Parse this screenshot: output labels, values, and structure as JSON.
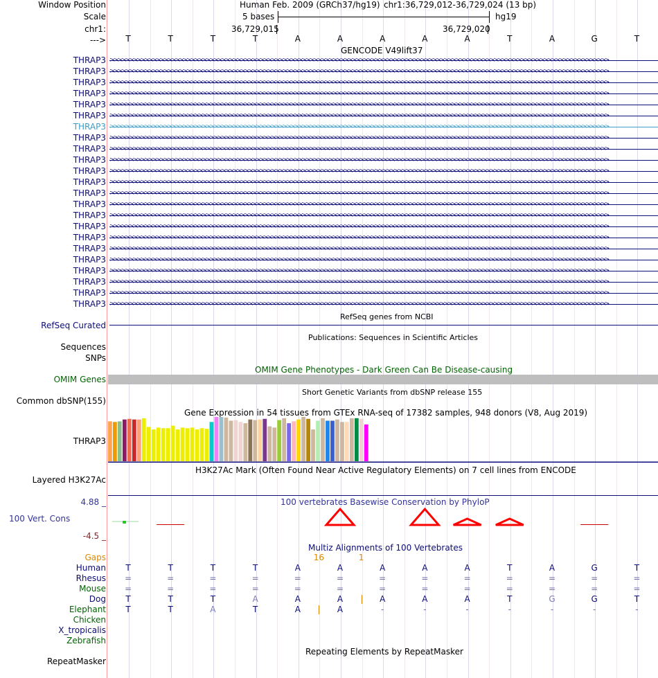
{
  "header": {
    "window_position_label": "Window Position",
    "scale_label": "Scale",
    "chrom_label": "chr1:",
    "strand_label": "--->",
    "assembly": "Human Feb. 2009 (GRCh37/hg19)",
    "position": "chr1:36,729,012-36,729,024 (13 bp)",
    "scale_bases": "5 bases",
    "db": "hg19",
    "coord_left": "36,729,015",
    "coord_right": "36,729,020"
  },
  "bases": [
    "T",
    "T",
    "T",
    "T",
    "A",
    "A",
    "A",
    "A",
    "A",
    "T",
    "A",
    "G",
    "T"
  ],
  "gencode": {
    "title": "GENCODE V49lift37",
    "transcripts": [
      "THRAP3",
      "THRAP3",
      "THRAP3",
      "THRAP3",
      "THRAP3",
      "THRAP3",
      "THRAP3",
      "THRAP3",
      "THRAP3",
      "THRAP3",
      "THRAP3",
      "THRAP3",
      "THRAP3",
      "THRAP3",
      "THRAP3",
      "THRAP3",
      "THRAP3",
      "THRAP3",
      "THRAP3",
      "THRAP3",
      "THRAP3",
      "THRAP3",
      "THRAP3"
    ],
    "highlight_index": 6,
    "color": "#0c0c78",
    "highlight_color": "#3c9ec8"
  },
  "refseq": {
    "title": "RefSeq genes from NCBI",
    "label": "RefSeq Curated",
    "color": "#0c0c78"
  },
  "publications": {
    "title": "Publications: Sequences in Scientific Articles",
    "label_line1": "Sequences",
    "label_line2": "SNPs"
  },
  "omim": {
    "title": "OMIM Gene Phenotypes - Dark Green Can Be Disease-causing",
    "label": "OMIM Genes",
    "color": "#006400",
    "bar_color": "#bebebe"
  },
  "dbsnp": {
    "title": "Short Genetic Variants from dbSNP release 155",
    "label": "Common dbSNP(155)"
  },
  "gtex": {
    "title": "Gene Expression in 54 tissues from GTEx RNA-seq of 17382 samples, 948 donors (V8, Aug 2019)",
    "label": "THRAP3",
    "values": [
      0.64,
      0.63,
      0.64,
      0.67,
      0.68,
      0.67,
      0.67,
      0.69,
      0.55,
      0.51,
      0.54,
      0.53,
      0.53,
      0.57,
      0.51,
      0.54,
      0.53,
      0.54,
      0.51,
      0.53,
      0.52,
      0.63,
      0.74,
      0.75,
      0.7,
      0.65,
      0.66,
      0.63,
      0.61,
      0.67,
      0.66,
      0.67,
      0.68,
      0.56,
      0.54,
      0.66,
      0.69,
      0.61,
      0.64,
      0.67,
      0.72,
      0.68,
      0.51,
      0.65,
      0.69,
      0.65,
      0.65,
      0.67,
      0.63,
      0.63,
      0.69,
      0.69,
      0.68,
      0.59
    ],
    "colors": [
      "#ffa54f",
      "#ee9a00",
      "#8fbc8f",
      "#8b1c62",
      "#ee6a50",
      "#cd2626",
      "#ffa07a",
      "#eeee00",
      "#eeee00",
      "#eeee00",
      "#eeee00",
      "#eeee00",
      "#eeee00",
      "#eeee00",
      "#eeee00",
      "#eeee00",
      "#eeee00",
      "#eeee00",
      "#eeee00",
      "#eeee00",
      "#eeee00",
      "#00cdcd",
      "#ee82ee",
      "#9ac0cd",
      "#cdb79e",
      "#cdb79e",
      "#eed5d2",
      "#eed5d2",
      "#cdb79e",
      "#8b7355",
      "#cdb79e",
      "#ffd39b",
      "#7a378b",
      "#cdb79e",
      "#cdb79e",
      "#9acd32",
      "#cdb79e",
      "#7a67ee",
      "#ffb6c1",
      "#ffd700",
      "#cdb79e",
      "#b8860b",
      "#cdb79e",
      "#b4eeb4",
      "#cdb79e",
      "#1c86ee",
      "#3a5fcd",
      "#cdb79e",
      "#cdb79e",
      "#ffdab9",
      "#cdb79e",
      "#008b45",
      "#eed5d2",
      "#ff00ff"
    ]
  },
  "h3k27ac": {
    "title": "H3K27Ac Mark (Often Found Near Active Regulatory Elements) on 7 cell lines from ENCODE",
    "label": "Layered H3K27Ac"
  },
  "phylop": {
    "title": "100 vertebrates Basewise Conservation by PhyloP",
    "label": "100 Vert. Cons",
    "max_label": "4.88 _",
    "min_label": "-4.5 _",
    "max": 4.88,
    "min": -4.5,
    "values": [
      0.2,
      -0.05,
      0,
      0,
      0,
      2.3,
      0,
      2.3,
      0.9,
      0.9,
      0,
      -0.3,
      0
    ],
    "pos_color": "#ff0000",
    "neg_color": "#cc0000",
    "color_title": "#333399",
    "color_neg_label": "#882222"
  },
  "multiz": {
    "title": "Multiz Alignments of 100 Vertebrates",
    "gaps_label": "Gaps",
    "gap_counts": [
      {
        "after": 4,
        "label": "16"
      },
      {
        "after": 5,
        "label": "1"
      }
    ],
    "gap_color": "#dd8800",
    "species": [
      {
        "name": "Human",
        "color": "#0c0c78",
        "bases": [
          "T",
          "T",
          "T",
          "T",
          "A",
          "A",
          "A",
          "A",
          "A",
          "T",
          "A",
          "G",
          "T"
        ]
      },
      {
        "name": "Rhesus",
        "color": "#0c0c78",
        "bases": [
          "=",
          "=",
          "=",
          "=",
          "=",
          "=",
          "=",
          "=",
          "=",
          "=",
          "=",
          "=",
          "="
        ]
      },
      {
        "name": "Mouse",
        "color": "#006400",
        "bases": [
          "=",
          "=",
          "=",
          "=",
          "=",
          "=",
          "=",
          "=",
          "=",
          "=",
          "=",
          "=",
          "="
        ]
      },
      {
        "name": "Dog",
        "color": "#0c0c78",
        "bases": [
          "T",
          "T",
          "T",
          "A",
          "A",
          "A",
          "A",
          "A",
          "A",
          "T",
          "G",
          "G",
          "T"
        ],
        "mismatch": [
          3,
          10
        ],
        "insert_after": [
          5
        ]
      },
      {
        "name": "Elephant",
        "color": "#006400",
        "bases": [
          "T",
          "T",
          "A",
          "T",
          "A",
          "A",
          "-",
          "-",
          "-",
          "-",
          "-",
          "-",
          "-"
        ],
        "mismatch": [
          2
        ],
        "insert_after": [
          4
        ]
      },
      {
        "name": "Chicken",
        "color": "#006400",
        "bases": []
      },
      {
        "name": "X_tropicalis",
        "color": "#0c0c78",
        "bases": []
      },
      {
        "name": "Zebrafish",
        "color": "#006400",
        "bases": []
      }
    ]
  },
  "repeatmasker": {
    "title": "Repeating Elements by RepeatMasker",
    "label": "RepeatMasker"
  }
}
